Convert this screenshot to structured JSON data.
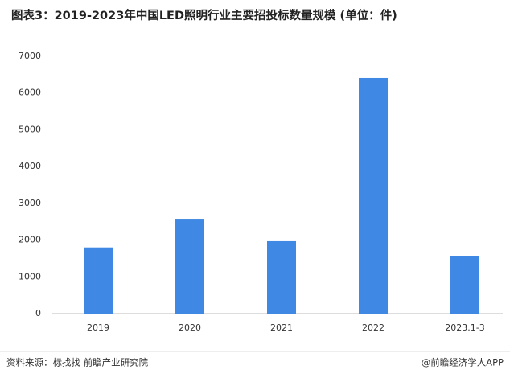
{
  "chart_data": {
    "type": "bar",
    "title": "图表3：2019-2023年中国LED照明行业主要招投标数量规模 (单位：件)",
    "categories": [
      "2019",
      "2020",
      "2021",
      "2022",
      "2023.1-3"
    ],
    "values": [
      1800,
      2580,
      1970,
      6410,
      1575
    ],
    "color": "#3f88e3",
    "ylim": [
      0,
      7000
    ],
    "yticks": [
      0,
      1000,
      2000,
      3000,
      4000,
      5000,
      6000,
      7000
    ],
    "grid": false
  },
  "footer": {
    "source": "资料来源：标找找 前瞻产业研究院",
    "brand": "@前瞻经济学人APP"
  }
}
